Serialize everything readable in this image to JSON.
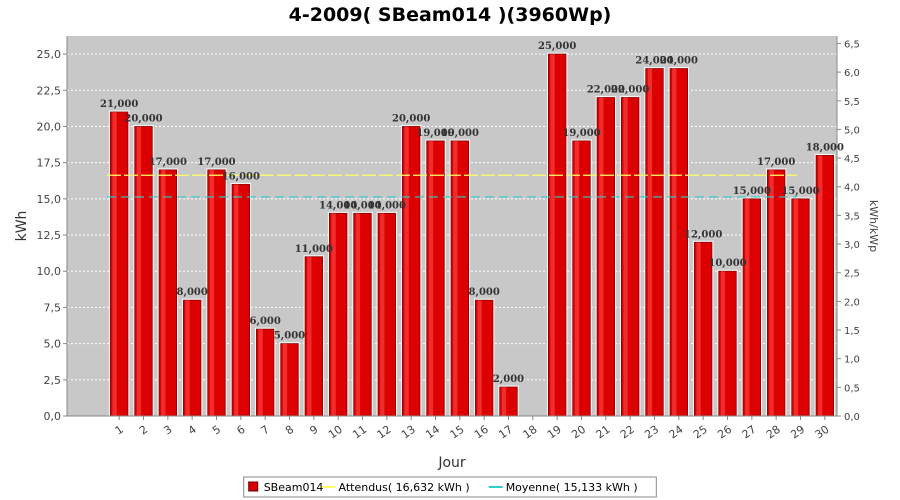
{
  "chart_data": {
    "type": "bar",
    "title": "4-2009( SBeam014 )(3960Wp)",
    "xlabel": "Jour",
    "ylabel": "kWh",
    "y2label": "kWh/kWp",
    "ylim": [
      0,
      26.25
    ],
    "y2lim": [
      0,
      6.63
    ],
    "yticks": [
      "0,0",
      "2,5",
      "5,0",
      "7,5",
      "10,0",
      "12,5",
      "15,0",
      "17,5",
      "20,0",
      "22,5",
      "25,0"
    ],
    "y2ticks": [
      "0,0",
      "0,5",
      "1,0",
      "1,5",
      "2,0",
      "2,5",
      "3,0",
      "3,5",
      "4,0",
      "4,5",
      "5,0",
      "5,5",
      "6,0",
      "6,5"
    ],
    "categories": [
      "1",
      "2",
      "3",
      "4",
      "5",
      "6",
      "7",
      "8",
      "9",
      "10",
      "11",
      "12",
      "13",
      "14",
      "15",
      "16",
      "17",
      "18",
      "19",
      "20",
      "21",
      "22",
      "23",
      "24",
      "25",
      "26",
      "27",
      "28",
      "29",
      "30"
    ],
    "series": [
      {
        "name": "SBeam014",
        "color": "#dd0000",
        "values": [
          21,
          20,
          17,
          8,
          17,
          16,
          6,
          5,
          11,
          14,
          14,
          14,
          20,
          19,
          19,
          8,
          2,
          null,
          25,
          19,
          22,
          22,
          24,
          24,
          12,
          10,
          15,
          17,
          15,
          18
        ],
        "labels": [
          "21,000",
          "20,000",
          "17,000",
          "8,000",
          "17,000",
          "16,000",
          "6,000",
          "5,000",
          "11,000",
          "14,000",
          "14,000",
          "14,000",
          "20,000",
          "19,000",
          "19,000",
          "8,000",
          "2,000",
          "",
          "25,000",
          "19,000",
          "22,000",
          "22,000",
          "24,000",
          "24,000",
          "12,000",
          "10,000",
          "15,000",
          "17,000",
          "15,000",
          "18,000"
        ]
      }
    ],
    "reference_lines": [
      {
        "name": "Attendus",
        "value": 16.632,
        "color": "#ffff66"
      },
      {
        "name": "Moyenne",
        "value": 15.133,
        "color": "#33cccc"
      }
    ],
    "legend": {
      "position": "bottom",
      "items": [
        {
          "label": "SBeam014",
          "color": "#dd0000",
          "kind": "box"
        },
        {
          "label": "Attendus( 16,632 kWh )",
          "color": "#ffff66",
          "kind": "line"
        },
        {
          "label": "Moyenne( 15,133 kWh )",
          "color": "#33cccc",
          "kind": "line"
        }
      ]
    },
    "plot_background": "#c8c8c8",
    "grid": true
  }
}
